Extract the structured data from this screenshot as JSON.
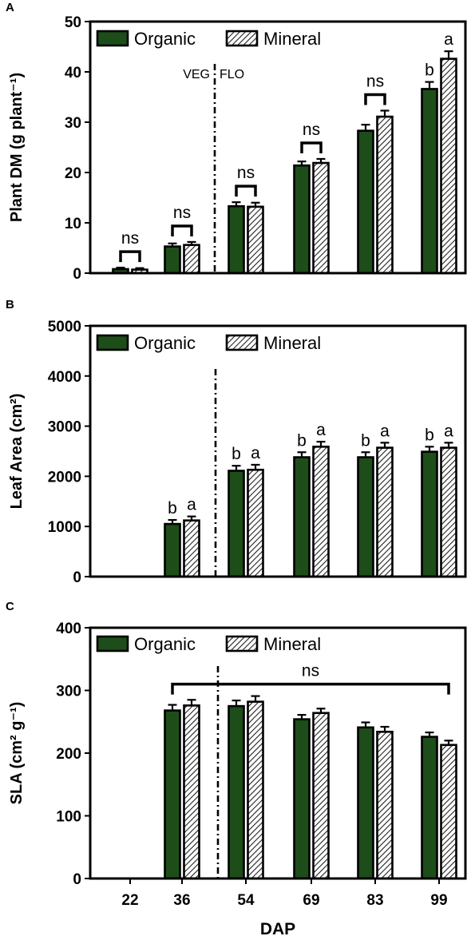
{
  "colors": {
    "organic": "#1d4d19",
    "hatch_stroke": "#222222",
    "axis": "#000000"
  },
  "shared": {
    "xlabel": "DAP",
    "categories": [
      "22",
      "36",
      "54",
      "69",
      "83",
      "99"
    ],
    "legend": [
      "Organic",
      "Mineral"
    ],
    "legend_position": "top-left"
  },
  "chart_data": [
    {
      "panel": "A",
      "type": "bar",
      "ylabel": "Plant DM (g plant⁻¹)",
      "ylim": [
        0,
        50
      ],
      "yticks": [
        "0",
        "10",
        "20",
        "30",
        "40",
        "50"
      ],
      "phase_labels": [
        "VEG",
        "FLO"
      ],
      "series": [
        {
          "name": "Organic",
          "values": [
            0.8,
            5.3,
            13.3,
            21.4,
            28.3,
            36.6
          ],
          "err": [
            0.3,
            0.6,
            0.8,
            0.8,
            1.2,
            1.4
          ]
        },
        {
          "name": "Mineral",
          "values": [
            0.7,
            5.6,
            13.2,
            21.9,
            31.1,
            42.6
          ],
          "err": [
            0.3,
            0.6,
            0.8,
            0.8,
            1.2,
            1.5
          ]
        }
      ],
      "annotations": [
        {
          "type": "bracket",
          "category": 0,
          "label": "ns"
        },
        {
          "type": "bracket",
          "category": 1,
          "label": "ns"
        },
        {
          "type": "bracket",
          "category": 2,
          "label": "ns"
        },
        {
          "type": "bracket",
          "category": 3,
          "label": "ns"
        },
        {
          "type": "bracket",
          "category": 4,
          "label": "ns"
        },
        {
          "type": "letters",
          "category": 5,
          "labels": [
            "b",
            "a"
          ]
        }
      ]
    },
    {
      "panel": "B",
      "type": "bar",
      "ylabel": "Leaf Area (cm²)",
      "ylim": [
        0,
        5000
      ],
      "yticks": [
        "0",
        "1000",
        "2000",
        "3000",
        "4000",
        "5000"
      ],
      "series": [
        {
          "name": "Organic",
          "values": [
            null,
            1050,
            2110,
            2380,
            2380,
            2490
          ],
          "err": [
            null,
            80,
            100,
            100,
            100,
            100
          ]
        },
        {
          "name": "Mineral",
          "values": [
            null,
            1120,
            2130,
            2590,
            2570,
            2570
          ],
          "err": [
            null,
            80,
            100,
            100,
            100,
            100
          ]
        }
      ],
      "annotations": [
        {
          "type": "letters",
          "category": 1,
          "labels": [
            "b",
            "a"
          ]
        },
        {
          "type": "letters",
          "category": 2,
          "labels": [
            "b",
            "a"
          ]
        },
        {
          "type": "letters",
          "category": 3,
          "labels": [
            "b",
            "a"
          ]
        },
        {
          "type": "letters",
          "category": 4,
          "labels": [
            "b",
            "a"
          ]
        },
        {
          "type": "letters",
          "category": 5,
          "labels": [
            "b",
            "a"
          ]
        }
      ]
    },
    {
      "panel": "C",
      "type": "bar",
      "ylabel": "SLA (cm² g⁻¹)",
      "ylim": [
        0,
        400
      ],
      "yticks": [
        "0",
        "100",
        "200",
        "300",
        "400"
      ],
      "series": [
        {
          "name": "Organic",
          "values": [
            null,
            268,
            275,
            254,
            241,
            226
          ],
          "err": [
            null,
            9,
            9,
            7,
            8,
            7
          ]
        },
        {
          "name": "Mineral",
          "values": [
            null,
            276,
            282,
            264,
            234,
            213
          ],
          "err": [
            null,
            9,
            9,
            7,
            8,
            7
          ]
        }
      ],
      "annotations": [
        {
          "type": "span_bracket",
          "from": 1,
          "to": 5,
          "label": "ns"
        }
      ]
    }
  ]
}
